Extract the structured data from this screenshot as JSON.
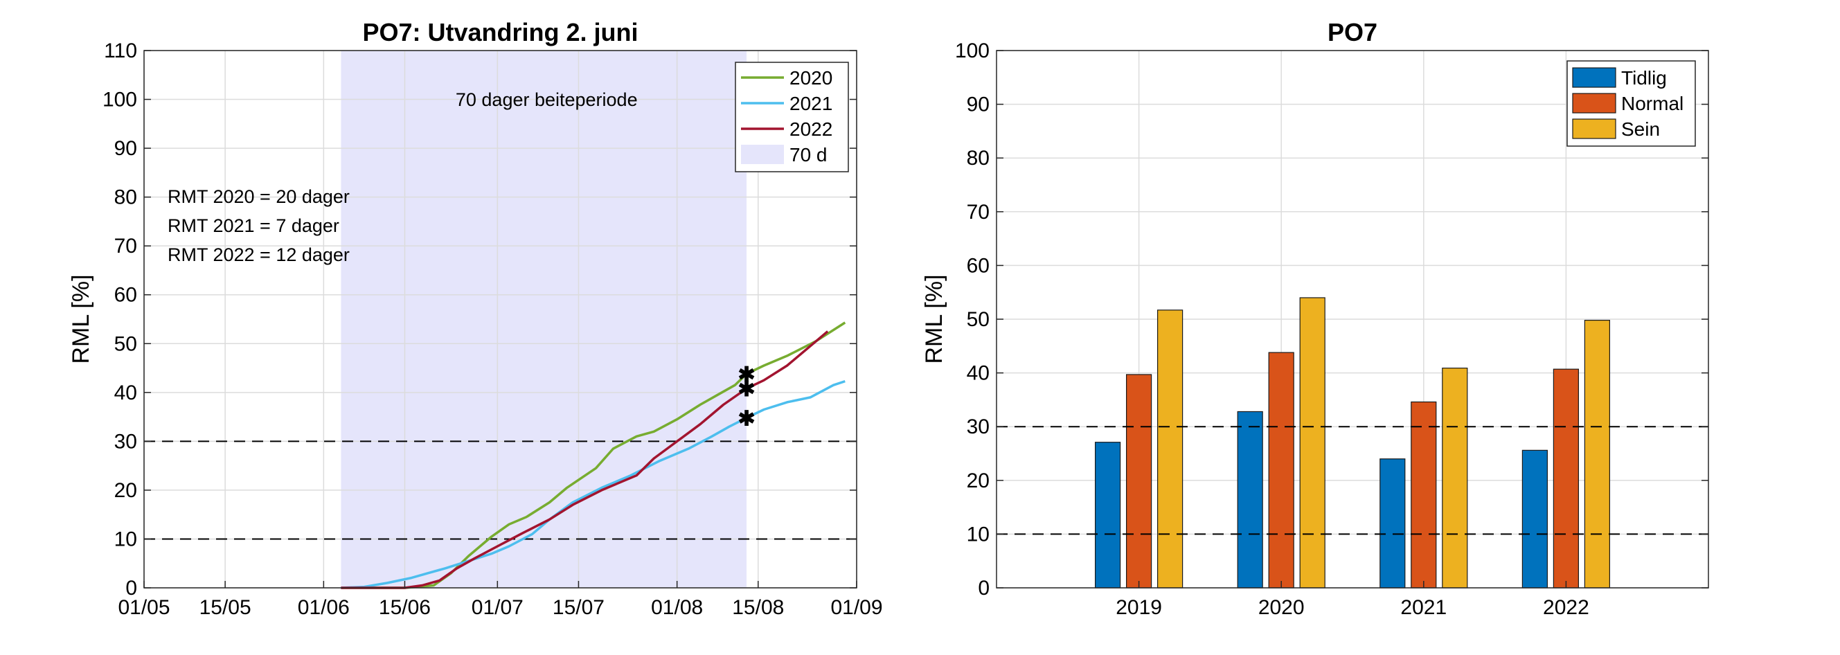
{
  "chart_data": [
    {
      "type": "line",
      "title": "PO7: Utvandring 2. juni",
      "ylabel": "RML [%]",
      "xlabel": "",
      "ylim": [
        0,
        110
      ],
      "yticks": [
        0,
        10,
        20,
        30,
        40,
        50,
        60,
        70,
        80,
        90,
        100,
        110
      ],
      "x_axis": "date (day/month)",
      "xlim": [
        "01/05",
        "01/09"
      ],
      "xtick_labels": [
        "01/05",
        "15/05",
        "01/06",
        "15/06",
        "01/07",
        "15/07",
        "01/08",
        "15/08",
        "01/09"
      ],
      "grid": true,
      "legend_position": "top-right",
      "hlines": [
        {
          "y": 30,
          "style": "dashed",
          "color": "#000000"
        },
        {
          "y": 10,
          "style": "dashed",
          "color": "#000000"
        }
      ],
      "shaded_region": {
        "label": "70 d",
        "x": [
          "04/06",
          "13/08"
        ],
        "color": "#e5e5fb",
        "annotation": "70 dager beiteperiode"
      },
      "annotations": [
        "RMT 2020 = 20 dager",
        "RMT 2021 = 7 dager",
        "RMT 2022 = 12 dager"
      ],
      "markers": [
        {
          "series": "2020",
          "x": "13/08",
          "y": 43.8
        },
        {
          "series": "2022",
          "x": "13/08",
          "y": 40.8
        },
        {
          "series": "2021",
          "x": "13/08",
          "y": 34.8
        }
      ],
      "series": [
        {
          "name": "2020",
          "color": "#77ac30",
          "points": [
            [
              "04/06",
              0
            ],
            [
              "10/06",
              0
            ],
            [
              "15/06",
              0
            ],
            [
              "20/06",
              0.5
            ],
            [
              "23/06",
              3
            ],
            [
              "26/06",
              6.5
            ],
            [
              "30/06",
              10.5
            ],
            [
              "03/07",
              13
            ],
            [
              "06/07",
              14.5
            ],
            [
              "10/07",
              17.5
            ],
            [
              "13/07",
              20.5
            ],
            [
              "18/07",
              24.5
            ],
            [
              "21/07",
              28.5
            ],
            [
              "25/07",
              31
            ],
            [
              "28/07",
              32
            ],
            [
              "01/08",
              34.5
            ],
            [
              "05/08",
              37.5
            ],
            [
              "08/08",
              39.5
            ],
            [
              "11/08",
              41.5
            ],
            [
              "13/08",
              43.8
            ],
            [
              "16/08",
              45.5
            ],
            [
              "20/08",
              47.5
            ],
            [
              "25/08",
              50.5
            ],
            [
              "30/08",
              54.3
            ]
          ]
        },
        {
          "name": "2021",
          "color": "#4dbeee",
          "points": [
            [
              "04/06",
              0
            ],
            [
              "08/06",
              0.2
            ],
            [
              "12/06",
              1
            ],
            [
              "16/06",
              2
            ],
            [
              "19/06",
              3
            ],
            [
              "22/06",
              4
            ],
            [
              "26/06",
              5.5
            ],
            [
              "30/06",
              7
            ],
            [
              "03/07",
              8.5
            ],
            [
              "07/07",
              11
            ],
            [
              "10/07",
              14
            ],
            [
              "14/07",
              17.5
            ],
            [
              "19/07",
              20.5
            ],
            [
              "24/07",
              23
            ],
            [
              "29/07",
              26
            ],
            [
              "03/08",
              28.5
            ],
            [
              "07/08",
              31
            ],
            [
              "10/08",
              33
            ],
            [
              "13/08",
              34.8
            ],
            [
              "16/08",
              36.5
            ],
            [
              "20/08",
              38
            ],
            [
              "24/08",
              39
            ],
            [
              "28/08",
              41.5
            ],
            [
              "30/08",
              42.3
            ]
          ]
        },
        {
          "name": "2022",
          "color": "#a2142f",
          "points": [
            [
              "04/06",
              0
            ],
            [
              "10/06",
              0
            ],
            [
              "15/06",
              0
            ],
            [
              "18/06",
              0.5
            ],
            [
              "21/06",
              1.5
            ],
            [
              "24/06",
              4
            ],
            [
              "27/06",
              6
            ],
            [
              "01/07",
              8.5
            ],
            [
              "05/07",
              11
            ],
            [
              "10/07",
              14
            ],
            [
              "14/07",
              17
            ],
            [
              "19/07",
              20
            ],
            [
              "25/07",
              23
            ],
            [
              "28/07",
              26.5
            ],
            [
              "01/08",
              30
            ],
            [
              "05/08",
              33.5
            ],
            [
              "09/08",
              37.5
            ],
            [
              "13/08",
              40.8
            ],
            [
              "16/08",
              42.5
            ],
            [
              "20/08",
              45.5
            ],
            [
              "24/08",
              49.5
            ],
            [
              "27/08",
              52.5
            ]
          ]
        }
      ]
    },
    {
      "type": "bar",
      "title": "PO7",
      "ylabel": "RML [%]",
      "xlabel": "",
      "ylim": [
        0,
        100
      ],
      "yticks": [
        0,
        10,
        20,
        30,
        40,
        50,
        60,
        70,
        80,
        90,
        100
      ],
      "categories": [
        "2019",
        "2020",
        "2021",
        "2022"
      ],
      "grid": true,
      "legend_position": "top-right",
      "hlines": [
        {
          "y": 30,
          "style": "dashed",
          "color": "#000000"
        },
        {
          "y": 10,
          "style": "dashed",
          "color": "#000000"
        }
      ],
      "series": [
        {
          "name": "Tidlig",
          "color": "#0072bd",
          "values": [
            27.1,
            32.8,
            24.0,
            25.6
          ]
        },
        {
          "name": "Normal",
          "color": "#d95319",
          "values": [
            39.7,
            43.8,
            34.6,
            40.7
          ]
        },
        {
          "name": "Sein",
          "color": "#edb120",
          "values": [
            51.7,
            54.0,
            40.9,
            49.8
          ]
        }
      ]
    }
  ]
}
